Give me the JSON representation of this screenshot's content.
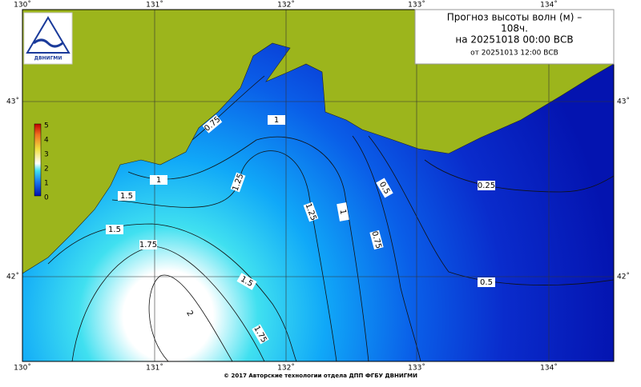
{
  "header": {
    "logo_text": "ДВНИГМИ",
    "title_lines": [
      "Прогноз высоты волн (м) –",
      "108ч.",
      "на 20251018 00:00 ВСВ",
      "от 20251013 12:00 ВСВ"
    ]
  },
  "axes": {
    "lon_top": [
      "130˚",
      "131˚",
      "132˚",
      "133˚",
      "134˚"
    ],
    "lon_bottom": [
      "130˚",
      "131˚",
      "132˚",
      "133˚",
      "134˚"
    ],
    "lat_left": [
      "43˚",
      "42˚"
    ],
    "lat_right": [
      "43˚",
      "42˚"
    ]
  },
  "colorbar": {
    "labels": [
      "5",
      "4",
      "3",
      "2",
      "1",
      "0"
    ]
  },
  "contour_labels": [
    "0.75",
    "1",
    "1",
    "1.25",
    "1.25",
    "1",
    "0.5",
    "0.25",
    "1.5",
    "1.5",
    "1.75",
    "0.75",
    "0.5",
    "1.5",
    "1.75",
    "2"
  ],
  "footer": "© 2017 Авторские технологии отдела ДПП ФГБУ ДВНИГМИ"
}
